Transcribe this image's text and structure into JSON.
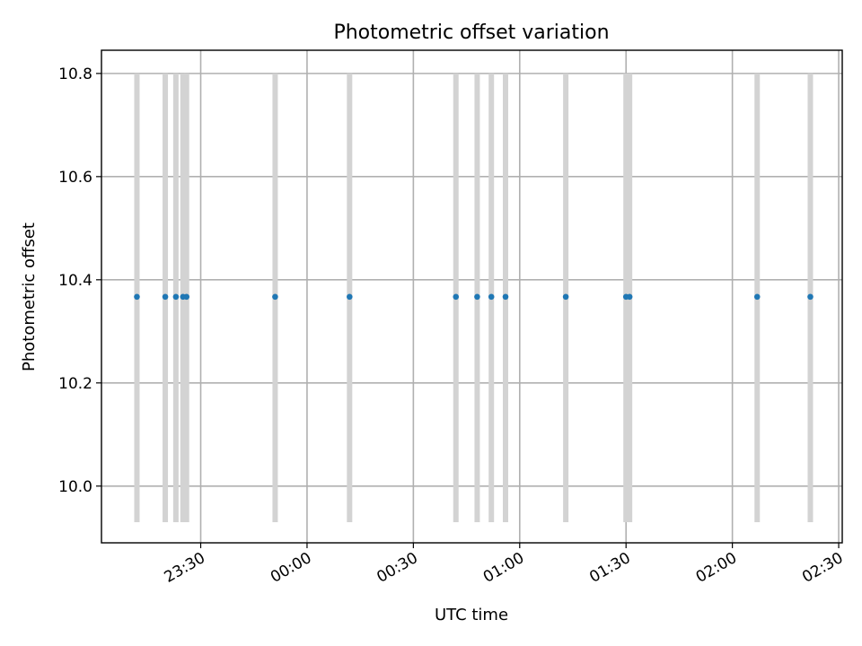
{
  "chart_data": {
    "type": "scatter",
    "title": "Photometric offset variation",
    "xlabel": "UTC time",
    "ylabel": "Photometric offset",
    "x_axis": {
      "kind": "time",
      "range": [
        "23:02",
        "02:31"
      ],
      "tick_labels": [
        "23:30",
        "00:00",
        "00:30",
        "01:00",
        "01:30",
        "02:00",
        "02:30"
      ],
      "tick_values": [
        "23:30",
        "00:00",
        "00:30",
        "01:00",
        "01:30",
        "02:00",
        "02:30"
      ]
    },
    "y_axis": {
      "range": [
        9.89,
        10.845
      ],
      "tick_labels": [
        "10.0",
        "10.2",
        "10.4",
        "10.6",
        "10.8"
      ],
      "tick_values": [
        10.0,
        10.2,
        10.4,
        10.6,
        10.8
      ]
    },
    "grid": true,
    "series": [
      {
        "marker_color": "#1f77b4",
        "error_color": "#d3d3d3",
        "points": [
          {
            "x": "23:12",
            "y": 10.367,
            "err_low": 9.93,
            "err_high": 10.8
          },
          {
            "x": "23:20",
            "y": 10.367,
            "err_low": 9.93,
            "err_high": 10.8
          },
          {
            "x": "23:23",
            "y": 10.367,
            "err_low": 9.93,
            "err_high": 10.8
          },
          {
            "x": "23:25",
            "y": 10.367,
            "err_low": 9.93,
            "err_high": 10.8
          },
          {
            "x": "23:26",
            "y": 10.367,
            "err_low": 9.93,
            "err_high": 10.8
          },
          {
            "x": "23:51",
            "y": 10.367,
            "err_low": 9.93,
            "err_high": 10.8
          },
          {
            "x": "00:12",
            "y": 10.367,
            "err_low": 9.93,
            "err_high": 10.8
          },
          {
            "x": "00:42",
            "y": 10.367,
            "err_low": 9.93,
            "err_high": 10.8
          },
          {
            "x": "00:48",
            "y": 10.367,
            "err_low": 9.93,
            "err_high": 10.8
          },
          {
            "x": "00:52",
            "y": 10.367,
            "err_low": 9.93,
            "err_high": 10.8
          },
          {
            "x": "00:56",
            "y": 10.367,
            "err_low": 9.93,
            "err_high": 10.8
          },
          {
            "x": "01:13",
            "y": 10.367,
            "err_low": 9.93,
            "err_high": 10.8
          },
          {
            "x": "01:30",
            "y": 10.367,
            "err_low": 9.93,
            "err_high": 10.8
          },
          {
            "x": "01:31",
            "y": 10.367,
            "err_low": 9.93,
            "err_high": 10.8
          },
          {
            "x": "02:07",
            "y": 10.367,
            "err_low": 9.93,
            "err_high": 10.8
          },
          {
            "x": "02:22",
            "y": 10.367,
            "err_low": 9.93,
            "err_high": 10.8
          }
        ]
      }
    ]
  }
}
